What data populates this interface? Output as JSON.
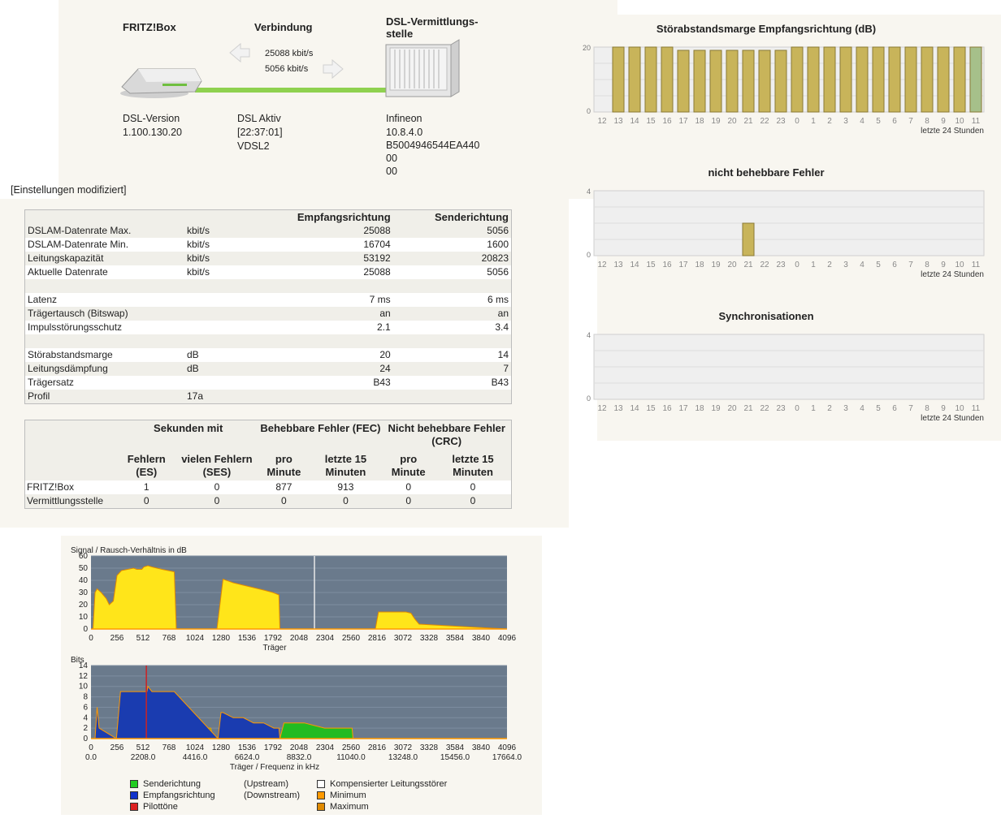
{
  "overview": {
    "fritzbox_title": "FRITZ!Box",
    "connection_title": "Verbindung",
    "dslam_title_line1": "DSL-Vermittlungs-",
    "dslam_title_line2": "stelle",
    "rate_down": "25088 kbit/s",
    "rate_up": "5056 kbit/s",
    "dsl_version_label": "DSL-Version",
    "dsl_version_value": "1.100.130.20",
    "status_line1": "DSL Aktiv",
    "status_line2": "[22:37:01]",
    "status_line3": "VDSL2",
    "dslam_line1": "Infineon",
    "dslam_line2": "10.8.4.0",
    "dslam_line3": "B5004946544EA440",
    "dslam_line4": "00",
    "dslam_line5": "00",
    "settings_note": "[Einstellungen modifiziert]"
  },
  "rates_table": {
    "headers": [
      "",
      "",
      "Empfangsrichtung",
      "Senderichtung"
    ],
    "rows": [
      [
        "DSLAM-Datenrate Max.",
        "kbit/s",
        "25088",
        "5056"
      ],
      [
        "DSLAM-Datenrate Min.",
        "kbit/s",
        "16704",
        "1600"
      ],
      [
        "Leitungskapazität",
        "kbit/s",
        "53192",
        "20823"
      ],
      [
        "Aktuelle Datenrate",
        "kbit/s",
        "25088",
        "5056"
      ],
      [
        "",
        "",
        "",
        ""
      ],
      [
        "Latenz",
        "",
        "7 ms",
        "6 ms"
      ],
      [
        "Trägertausch (Bitswap)",
        "",
        "an",
        "an"
      ],
      [
        "Impulsstörungsschutz",
        "",
        "2.1",
        "3.4"
      ],
      [
        "",
        "",
        "",
        ""
      ],
      [
        "Störabstandsmarge",
        "dB",
        "20",
        "14"
      ],
      [
        "Leitungsdämpfung",
        "dB",
        "24",
        "7"
      ],
      [
        "Trägersatz",
        "",
        "B43",
        "B43"
      ],
      [
        "Profil",
        "17a",
        "",
        ""
      ]
    ]
  },
  "errors_table": {
    "group_headers": [
      "Sekunden mit",
      "Behebbare Fehler (FEC)",
      "Nicht behebbare Fehler (CRC)"
    ],
    "sub_headers": [
      "Fehlern (ES)",
      "vielen Fehlern (SES)",
      "pro Minute",
      "letzte 15 Minuten",
      "pro Minute",
      "letzte 15 Minuten"
    ],
    "rows": [
      [
        "FRITZ!Box",
        "1",
        "0",
        "877",
        "913",
        "0",
        "0"
      ],
      [
        "Vermittlungsstelle",
        "0",
        "0",
        "0",
        "0",
        "0",
        "0"
      ]
    ]
  },
  "right_charts": {
    "hours": [
      "12",
      "13",
      "14",
      "15",
      "16",
      "17",
      "18",
      "19",
      "20",
      "21",
      "22",
      "23",
      "0",
      "1",
      "2",
      "3",
      "4",
      "5",
      "6",
      "7",
      "8",
      "9",
      "10",
      "11"
    ],
    "footer": "letzte 24 Stunden",
    "snr": {
      "title": "Störabstandsmarge Empfangsrichtung (dB)",
      "ymax": "20",
      "ymin": "0",
      "values": [
        0,
        20,
        20,
        20,
        20,
        19,
        19,
        19,
        19,
        19,
        19,
        19,
        20,
        20,
        20,
        20,
        20,
        20,
        20,
        20,
        20,
        20,
        20,
        20
      ]
    },
    "crc": {
      "title": "nicht behebbare Fehler",
      "ymax": "4",
      "ymin": "0",
      "values": [
        0,
        0,
        0,
        0,
        0,
        0,
        0,
        0,
        0,
        2,
        0,
        0,
        0,
        0,
        0,
        0,
        0,
        0,
        0,
        0,
        0,
        0,
        0,
        0
      ]
    },
    "sync": {
      "title": "Synchronisationen",
      "ymax": "4",
      "ymin": "0",
      "values": [
        0,
        0,
        0,
        0,
        0,
        0,
        0,
        0,
        0,
        0,
        0,
        0,
        0,
        0,
        0,
        0,
        0,
        0,
        0,
        0,
        0,
        0,
        0,
        0
      ]
    }
  },
  "spectrum": {
    "snr_title": "Signal / Rausch-Verhältnis in dB",
    "snr_xlabel": "Träger",
    "bits_title": "Bits",
    "bits_xlabel": "Träger / Frequenz in kHz",
    "carrier_ticks": [
      "0",
      "256",
      "512",
      "768",
      "1024",
      "1280",
      "1536",
      "1792",
      "2048",
      "2304",
      "2560",
      "2816",
      "3072",
      "3328",
      "3584",
      "3840",
      "4096"
    ],
    "freq_ticks": [
      "0.0",
      "2208.0",
      "4416.0",
      "6624.0",
      "8832.0",
      "11040.0",
      "13248.0",
      "15456.0",
      "17664.0"
    ],
    "snr_yticks": [
      "60",
      "50",
      "40",
      "30",
      "20",
      "10",
      "0"
    ],
    "bits_yticks": [
      "14",
      "12",
      "10",
      "8",
      "6",
      "4",
      "2",
      "0"
    ],
    "legend": [
      {
        "color": "#22cc22",
        "label": "Senderichtung",
        "note": "(Upstream)"
      },
      {
        "color": "#1133cc",
        "label": "Empfangsrichtung",
        "note": "(Downstream)"
      },
      {
        "color": "#dd2222",
        "label": "Pilottöne",
        "note": ""
      },
      {
        "color": "#ffffff",
        "label": "Kompensierter Leitungsstörer",
        "note": ""
      },
      {
        "color": "#ff9900",
        "label": "Minimum",
        "note": ""
      },
      {
        "color": "#e08a00",
        "label": "Maximum",
        "note": ""
      }
    ]
  },
  "chart_data": [
    {
      "type": "bar",
      "title": "Störabstandsmarge Empfangsrichtung (dB)",
      "categories": [
        "12",
        "13",
        "14",
        "15",
        "16",
        "17",
        "18",
        "19",
        "20",
        "21",
        "22",
        "23",
        "0",
        "1",
        "2",
        "3",
        "4",
        "5",
        "6",
        "7",
        "8",
        "9",
        "10",
        "11"
      ],
      "values": [
        0,
        20,
        20,
        20,
        20,
        19,
        19,
        19,
        19,
        19,
        19,
        19,
        20,
        20,
        20,
        20,
        20,
        20,
        20,
        20,
        20,
        20,
        20,
        20
      ],
      "ylim": [
        0,
        20
      ],
      "xlabel": "letzte 24 Stunden"
    },
    {
      "type": "bar",
      "title": "nicht behebbare Fehler",
      "categories": [
        "12",
        "13",
        "14",
        "15",
        "16",
        "17",
        "18",
        "19",
        "20",
        "21",
        "22",
        "23",
        "0",
        "1",
        "2",
        "3",
        "4",
        "5",
        "6",
        "7",
        "8",
        "9",
        "10",
        "11"
      ],
      "values": [
        0,
        0,
        0,
        0,
        0,
        0,
        0,
        0,
        0,
        2,
        0,
        0,
        0,
        0,
        0,
        0,
        0,
        0,
        0,
        0,
        0,
        0,
        0,
        0
      ],
      "ylim": [
        0,
        4
      ],
      "xlabel": "letzte 24 Stunden"
    },
    {
      "type": "bar",
      "title": "Synchronisationen",
      "categories": [
        "12",
        "13",
        "14",
        "15",
        "16",
        "17",
        "18",
        "19",
        "20",
        "21",
        "22",
        "23",
        "0",
        "1",
        "2",
        "3",
        "4",
        "5",
        "6",
        "7",
        "8",
        "9",
        "10",
        "11"
      ],
      "values": [
        0,
        0,
        0,
        0,
        0,
        0,
        0,
        0,
        0,
        0,
        0,
        0,
        0,
        0,
        0,
        0,
        0,
        0,
        0,
        0,
        0,
        0,
        0,
        0
      ],
      "ylim": [
        0,
        4
      ],
      "xlabel": "letzte 24 Stunden"
    },
    {
      "type": "area",
      "title": "Signal / Rausch-Verhältnis in dB",
      "xlabel": "Träger",
      "xlim": [
        0,
        4096
      ],
      "ylim": [
        0,
        60
      ],
      "x": [
        0,
        20,
        40,
        60,
        100,
        150,
        180,
        220,
        256,
        300,
        360,
        420,
        450,
        500,
        520,
        560,
        600,
        700,
        760,
        820,
        840,
        1180,
        1240,
        1300,
        1400,
        1500,
        1600,
        1700,
        1790,
        1850,
        1860,
        2800,
        2830,
        2900,
        3000,
        3100,
        3150,
        3190,
        3230,
        4096
      ],
      "values": [
        0,
        0,
        30,
        33,
        30,
        25,
        20,
        23,
        44,
        48,
        49,
        50,
        49,
        49,
        51,
        52,
        51,
        49,
        48,
        47,
        0,
        0,
        0,
        41,
        38,
        36,
        34,
        32,
        30,
        28,
        0,
        0,
        14,
        14,
        14,
        14,
        13,
        8,
        4,
        0
      ]
    },
    {
      "type": "area",
      "title": "Bits",
      "xlabel": "Träger / Frequenz in kHz",
      "xlim": [
        0,
        4096
      ],
      "ylim": [
        0,
        14
      ],
      "series": [
        {
          "name": "Empfangsrichtung",
          "x": [
            40,
            60,
            80,
            250,
            290,
            500,
            550,
            560,
            600,
            820,
            1250,
            1280,
            1300,
            1400,
            1500,
            1600,
            1700,
            1800,
            1850,
            1860
          ],
          "values": [
            0,
            6,
            2,
            0,
            9,
            9,
            9,
            10,
            9,
            9,
            0,
            5,
            5,
            4,
            4,
            3,
            3,
            2,
            2,
            0
          ]
        },
        {
          "name": "Senderichtung",
          "x": [
            860,
            900,
            1000,
            1100,
            1180,
            1200,
            1860,
            1900,
            2000,
            2100,
            2300,
            2500,
            2570,
            2580
          ],
          "values": [
            4,
            3,
            3,
            2,
            2,
            0,
            0,
            3,
            3,
            3,
            2,
            2,
            2,
            0
          ]
        }
      ]
    }
  ]
}
